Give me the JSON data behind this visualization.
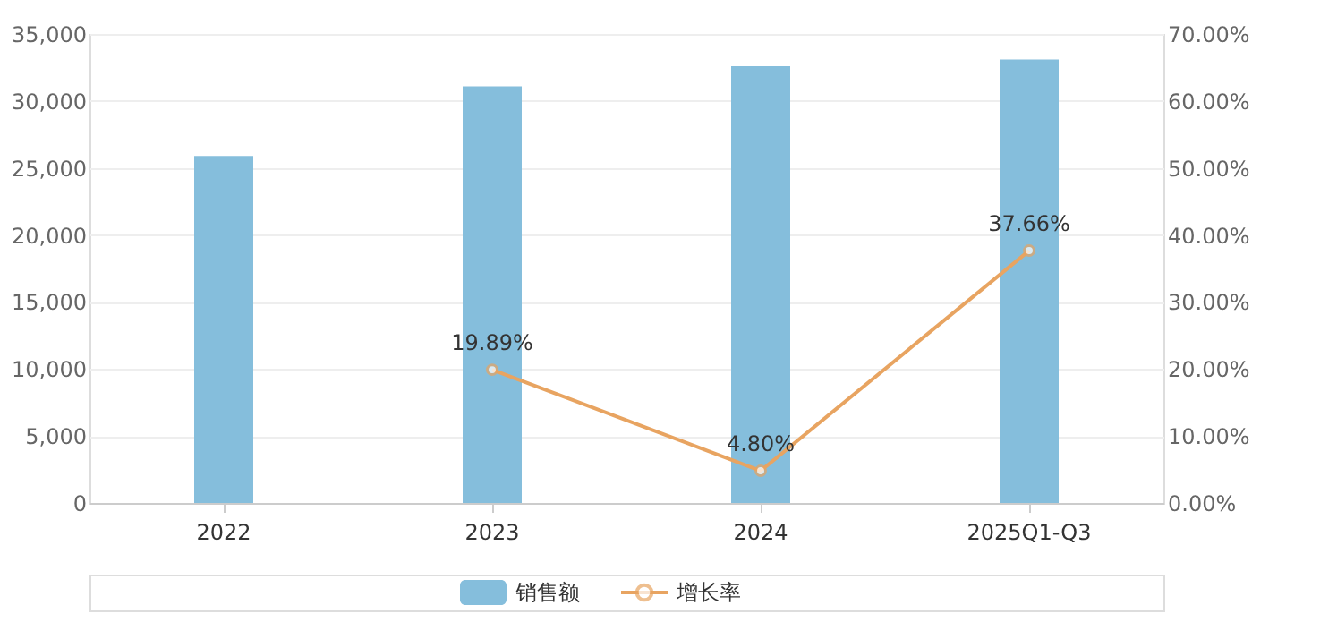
{
  "chart_data": {
    "type": "bar",
    "categories": [
      "2022",
      "2023",
      "2024",
      "2025Q1-Q3"
    ],
    "series": [
      {
        "name": "销售额",
        "color": "#85bedc",
        "values": [
          25900,
          31100,
          32600,
          33100
        ]
      },
      {
        "name": "增长率",
        "type": "line",
        "axis": "y2",
        "color": "#e8a461",
        "marker": "circle",
        "values": [
          null,
          19.89,
          4.8,
          37.66
        ],
        "value_labels": [
          null,
          "19.89%",
          "4.80%",
          "37.66%"
        ]
      }
    ],
    "ylim": [
      0,
      35000
    ],
    "yticks": [
      0,
      {
        "value": 5000,
        "label": "5,000"
      },
      {
        "value": 10000,
        "label": "10,000"
      },
      {
        "value": 15000,
        "label": "15,000"
      },
      {
        "value": 20000,
        "label": "20,000"
      },
      {
        "value": 25000,
        "label": "25,000"
      },
      {
        "value": 30000,
        "label": "30,000"
      },
      {
        "value": 35000,
        "label": "35,000"
      }
    ],
    "y2lim": [
      0,
      70
    ],
    "y2ticks": [
      {
        "value": 0,
        "label": "0.00%"
      },
      {
        "value": 10,
        "label": "10.00%"
      },
      {
        "value": 20,
        "label": "20.00%"
      },
      {
        "value": 30,
        "label": "30.00%"
      },
      {
        "value": 40,
        "label": "40.00%"
      },
      {
        "value": 50,
        "label": "50.00%"
      },
      {
        "value": 60,
        "label": "60.00%"
      },
      {
        "value": 70,
        "label": "70.00%"
      }
    ],
    "grid": "y",
    "legend": "bottom"
  }
}
